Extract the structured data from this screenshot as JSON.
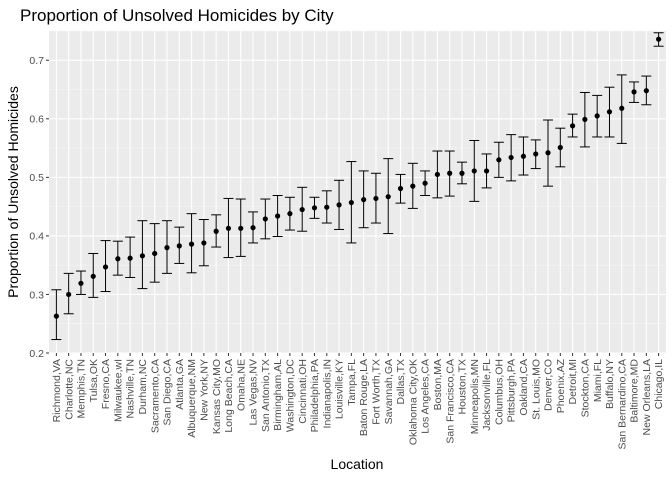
{
  "chart_data": {
    "type": "scatter",
    "title": "Proportion of Unsolved Homicides by City",
    "xlabel": "Location",
    "ylabel": "Proportion of Unsolved Homicides",
    "ylim": [
      0.2,
      0.75
    ],
    "yticks": [
      0.2,
      0.3,
      0.4,
      0.5,
      0.6,
      0.7
    ],
    "ytick_labels": [
      "0.2",
      "0.3",
      "0.4",
      "0.5",
      "0.6",
      "0.7"
    ],
    "grid": true,
    "error_bars": true,
    "colors": {
      "panel": "#ebebeb",
      "grid_major": "#ffffff",
      "grid_minor": "#f5f5f5",
      "point": "#000000"
    },
    "points": [
      {
        "city": "Richmond,VA",
        "y": 0.263,
        "lo": 0.223,
        "hi": 0.308
      },
      {
        "city": "Charlotte,NC",
        "y": 0.3,
        "lo": 0.267,
        "hi": 0.336
      },
      {
        "city": "Memphis,TN",
        "y": 0.319,
        "lo": 0.3,
        "hi": 0.34
      },
      {
        "city": "Tulsa,OK",
        "y": 0.331,
        "lo": 0.295,
        "hi": 0.37
      },
      {
        "city": "Fresno,CA",
        "y": 0.347,
        "lo": 0.305,
        "hi": 0.392
      },
      {
        "city": "Milwaukee,wI",
        "y": 0.361,
        "lo": 0.333,
        "hi": 0.391
      },
      {
        "city": "Nashville,TN",
        "y": 0.362,
        "lo": 0.329,
        "hi": 0.398
      },
      {
        "city": "Durham,NC",
        "y": 0.366,
        "lo": 0.31,
        "hi": 0.426
      },
      {
        "city": "Sacramento,CA",
        "y": 0.37,
        "lo": 0.321,
        "hi": 0.421
      },
      {
        "city": "San Diego,CA",
        "y": 0.38,
        "lo": 0.336,
        "hi": 0.426
      },
      {
        "city": "Atlanta,GA",
        "y": 0.383,
        "lo": 0.353,
        "hi": 0.415
      },
      {
        "city": "Albuquerque,NM",
        "y": 0.386,
        "lo": 0.337,
        "hi": 0.438
      },
      {
        "city": "New York,NY",
        "y": 0.388,
        "lo": 0.349,
        "hi": 0.428
      },
      {
        "city": "Kansas City,MO",
        "y": 0.408,
        "lo": 0.381,
        "hi": 0.436
      },
      {
        "city": "Long Beach,CA",
        "y": 0.413,
        "lo": 0.363,
        "hi": 0.464
      },
      {
        "city": "Omaha,NE",
        "y": 0.413,
        "lo": 0.365,
        "hi": 0.463
      },
      {
        "city": "Las Vegas,NV",
        "y": 0.414,
        "lo": 0.388,
        "hi": 0.441
      },
      {
        "city": "San Antonio,TX",
        "y": 0.429,
        "lo": 0.395,
        "hi": 0.463
      },
      {
        "city": "Birmingham,AL",
        "y": 0.434,
        "lo": 0.399,
        "hi": 0.469
      },
      {
        "city": "Washington,DC",
        "y": 0.438,
        "lo": 0.41,
        "hi": 0.466
      },
      {
        "city": "Cincinnati,OH",
        "y": 0.445,
        "lo": 0.408,
        "hi": 0.483
      },
      {
        "city": "Philadelphia,PA",
        "y": 0.448,
        "lo": 0.43,
        "hi": 0.466
      },
      {
        "city": "Indianapolis,IN",
        "y": 0.449,
        "lo": 0.422,
        "hi": 0.477
      },
      {
        "city": "Louisville,KY",
        "y": 0.453,
        "lo": 0.411,
        "hi": 0.495
      },
      {
        "city": "Tampa,FL",
        "y": 0.457,
        "lo": 0.388,
        "hi": 0.527
      },
      {
        "city": "Baton Rouge,LA",
        "y": 0.462,
        "lo": 0.414,
        "hi": 0.511
      },
      {
        "city": "Fort Worth,TX",
        "y": 0.464,
        "lo": 0.422,
        "hi": 0.507
      },
      {
        "city": "Savannah,GA",
        "y": 0.467,
        "lo": 0.404,
        "hi": 0.532
      },
      {
        "city": "Dallas,TX",
        "y": 0.481,
        "lo": 0.456,
        "hi": 0.505
      },
      {
        "city": "Oklahoma City,OK",
        "y": 0.485,
        "lo": 0.447,
        "hi": 0.524
      },
      {
        "city": "Los Angeles,CA",
        "y": 0.49,
        "lo": 0.469,
        "hi": 0.511
      },
      {
        "city": "Boston,MA",
        "y": 0.505,
        "lo": 0.465,
        "hi": 0.545
      },
      {
        "city": "San Francisco,CA",
        "y": 0.507,
        "lo": 0.468,
        "hi": 0.545
      },
      {
        "city": "Houston,TX",
        "y": 0.507,
        "lo": 0.489,
        "hi": 0.526
      },
      {
        "city": "Minneapolis,MN",
        "y": 0.511,
        "lo": 0.459,
        "hi": 0.563
      },
      {
        "city": "Jacksonville,FL",
        "y": 0.511,
        "lo": 0.482,
        "hi": 0.54
      },
      {
        "city": "Columbus,OH",
        "y": 0.53,
        "lo": 0.5,
        "hi": 0.56
      },
      {
        "city": "Pittsburgh,PA",
        "y": 0.534,
        "lo": 0.494,
        "hi": 0.573
      },
      {
        "city": "Oakland,CA",
        "y": 0.536,
        "lo": 0.504,
        "hi": 0.569
      },
      {
        "city": "St. Louis,MO",
        "y": 0.54,
        "lo": 0.515,
        "hi": 0.564
      },
      {
        "city": "Denver,CO",
        "y": 0.542,
        "lo": 0.485,
        "hi": 0.598
      },
      {
        "city": "Phoenix,AZ",
        "y": 0.551,
        "lo": 0.518,
        "hi": 0.584
      },
      {
        "city": "Detroit,MI",
        "y": 0.588,
        "lo": 0.569,
        "hi": 0.608
      },
      {
        "city": "Stockton,CA",
        "y": 0.599,
        "lo": 0.552,
        "hi": 0.645
      },
      {
        "city": "Miami,FL",
        "y": 0.605,
        "lo": 0.569,
        "hi": 0.64
      },
      {
        "city": "Buffalo,NY",
        "y": 0.612,
        "lo": 0.569,
        "hi": 0.654
      },
      {
        "city": "San Bernardino,CA",
        "y": 0.618,
        "lo": 0.558,
        "hi": 0.675
      },
      {
        "city": "Baltimore,MD",
        "y": 0.646,
        "lo": 0.628,
        "hi": 0.663
      },
      {
        "city": "New Orleans,LA",
        "y": 0.648,
        "lo": 0.624,
        "hi": 0.673
      },
      {
        "city": "Chicago,IL",
        "y": 0.736,
        "lo": 0.724,
        "hi": 0.747
      }
    ]
  }
}
